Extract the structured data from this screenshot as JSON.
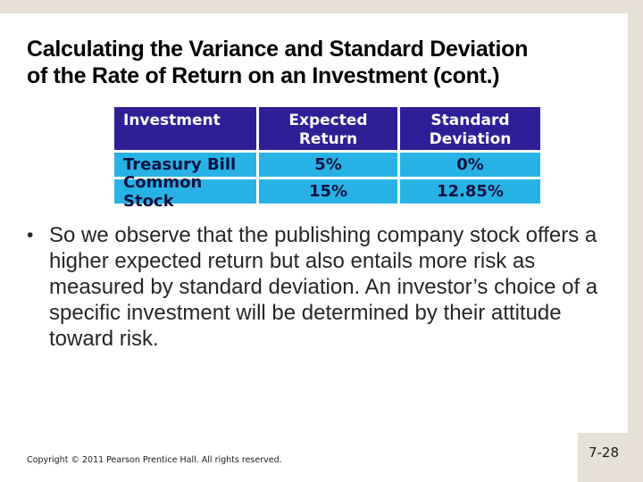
{
  "frame": {
    "page_number": "7-28",
    "beige_color": "#E8E1D8"
  },
  "title": {
    "line1": "Calculating the Variance and Standard Deviation",
    "line2": "of the Rate of Return on an Investment (cont.)"
  },
  "table": {
    "headers": [
      "Investment",
      "Expected Return",
      "Standard Deviation"
    ],
    "rows": [
      {
        "investment": "Treasury Bill",
        "expected_return": "5%",
        "std_dev": "0%"
      },
      {
        "investment": "Common Stock",
        "expected_return": "15%",
        "std_dev": "12.85%"
      }
    ],
    "colors": {
      "header_bg": "#2E1F97",
      "header_text": "#FFFFFF",
      "row_bg": "#29B2E5",
      "row_text": "#051342"
    }
  },
  "bullet": {
    "marker": "•",
    "text": "So we observe that the publishing company stock offers a higher expected return but also entails more risk as measured by standard deviation. An investor’s choice of a specific investment will be determined by their attitude toward risk."
  },
  "footer": {
    "copyright": "Copyright © 2011 Pearson Prentice Hall. All rights reserved."
  }
}
